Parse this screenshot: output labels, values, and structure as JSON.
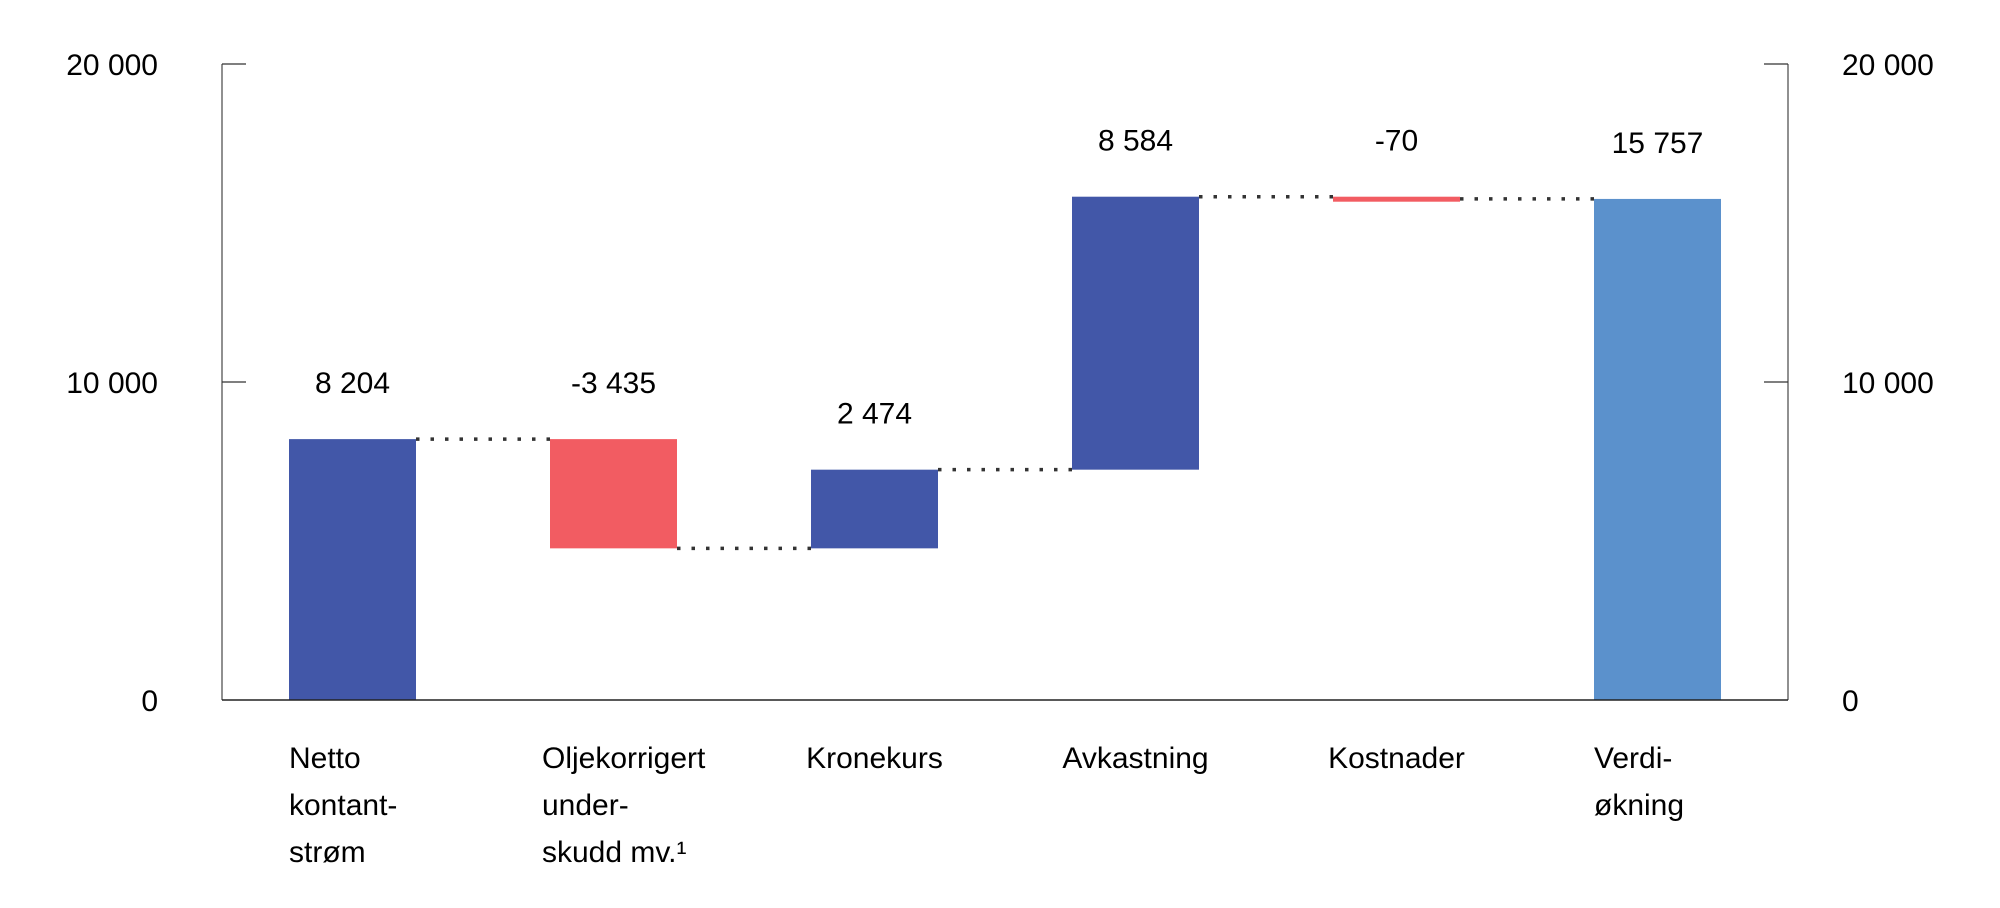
{
  "chart_data": {
    "type": "bar",
    "subtype": "waterfall",
    "categories": [
      [
        "Netto",
        "kontant-",
        "strøm"
      ],
      [
        "Oljekorrigert",
        "under-",
        "skudd mv.¹"
      ],
      [
        "Kronekurs"
      ],
      [
        "Avkastning"
      ],
      [
        "Kostnader"
      ],
      [
        "Verdi-",
        "økning"
      ]
    ],
    "values": [
      8204,
      -3435,
      2474,
      8584,
      -70,
      15757
    ],
    "value_labels": [
      "8 204",
      "-3 435",
      "2 474",
      "8 584",
      "-70",
      "15 757"
    ],
    "is_total": [
      false,
      false,
      false,
      false,
      false,
      true
    ],
    "ylim": [
      0,
      20000
    ],
    "yticks": [
      0,
      10000,
      20000
    ],
    "ytick_labels": [
      "0",
      "10 000",
      "20 000"
    ],
    "secondary_axis": true,
    "grid": false,
    "colors": {
      "increase": "#4257A8",
      "decrease": "#F25C62",
      "total": "#5B91CC",
      "connector": "#333333"
    }
  }
}
